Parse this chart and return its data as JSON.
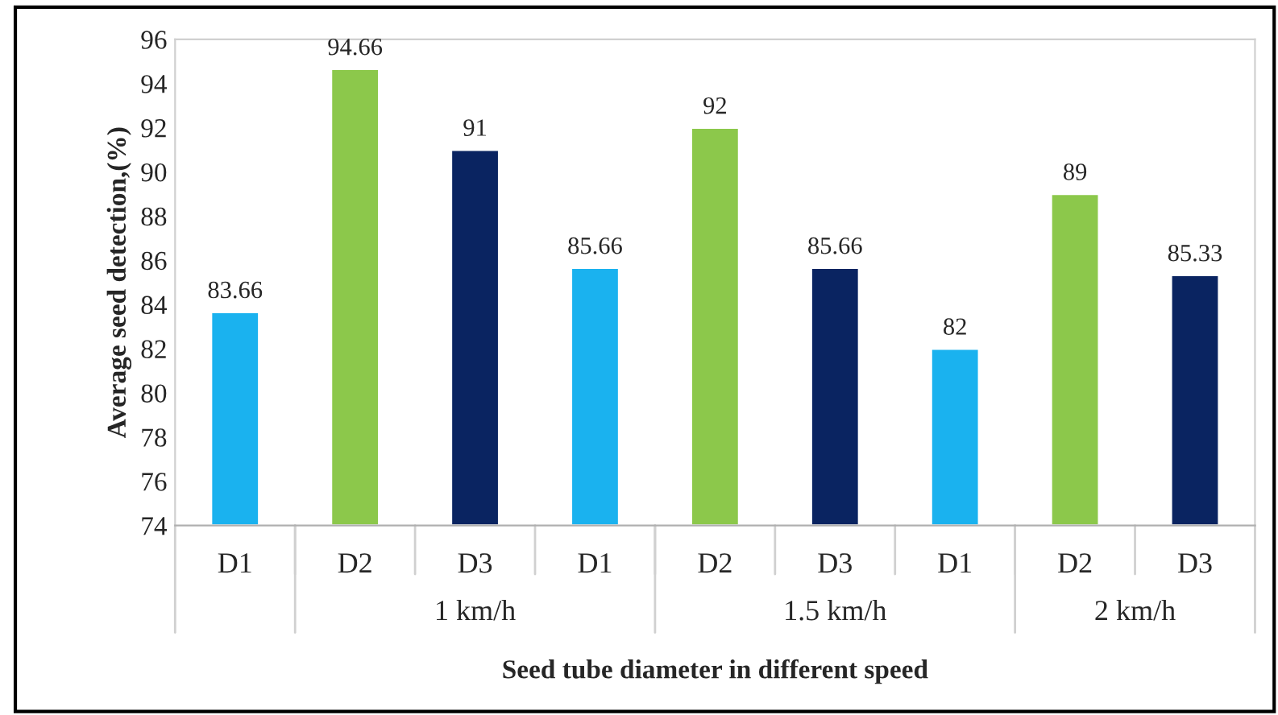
{
  "chart_data": {
    "type": "bar",
    "xlabel": "Seed tube diameter in different speed",
    "ylabel": "Average seed detection,(%)",
    "categories": [
      "D1",
      "D2",
      "D3",
      "D1",
      "D2",
      "D3",
      "D1",
      "D2",
      "D3"
    ],
    "values": [
      83.66,
      94.66,
      91,
      85.66,
      92,
      85.66,
      82,
      89,
      85.33
    ],
    "colors": [
      "#1ab2ef",
      "#8cc84b",
      "#0a2461",
      "#1ab2ef",
      "#8cc84b",
      "#0a2461",
      "#1ab2ef",
      "#8cc84b",
      "#0a2461"
    ],
    "data_labels": true,
    "ylim": [
      74,
      96
    ],
    "yticks": [
      74,
      76,
      78,
      80,
      82,
      84,
      86,
      88,
      90,
      92,
      94,
      96
    ],
    "annotations": [
      "1 km/h",
      "1.5 km/h",
      "2 km/h"
    ]
  }
}
